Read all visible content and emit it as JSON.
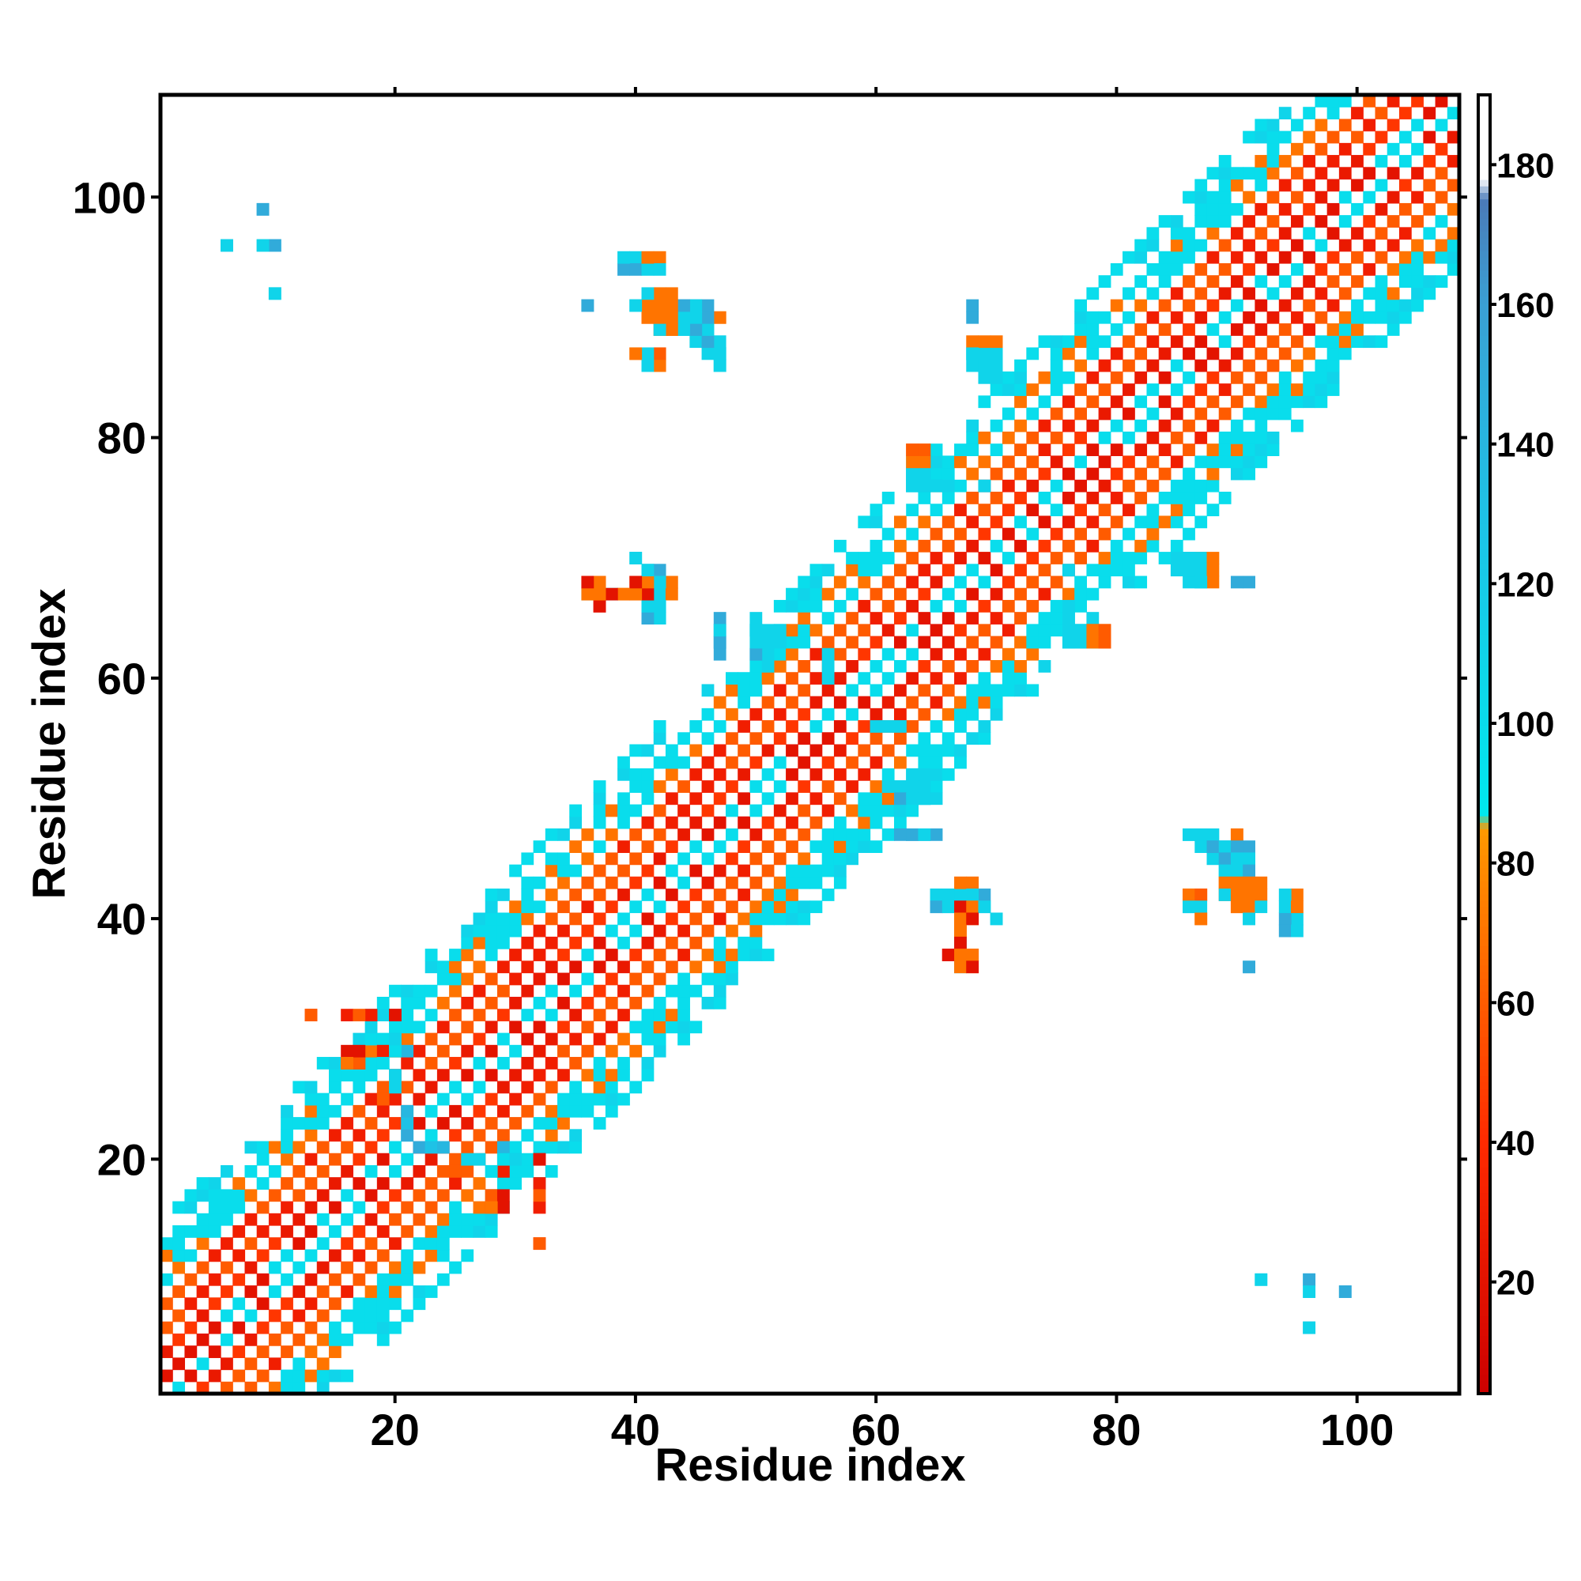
{
  "chart_data": {
    "type": "heatmap",
    "title": "",
    "xlabel": "Residue index",
    "ylabel": "Residue index",
    "xlim": [
      1,
      108
    ],
    "ylim": [
      1,
      108
    ],
    "x_ticks": [
      20,
      40,
      60,
      80,
      100
    ],
    "y_ticks": [
      20,
      40,
      60,
      80,
      100
    ],
    "grid": false,
    "colorbar": {
      "range": [
        4,
        190
      ],
      "ticks": [
        20,
        40,
        60,
        80,
        100,
        120,
        140,
        160,
        180
      ],
      "stops": [
        {
          "value": 4,
          "color": "#cc0000"
        },
        {
          "value": 40,
          "color": "#ff2a00"
        },
        {
          "value": 85,
          "color": "#ff9900"
        },
        {
          "value": 87,
          "color": "#00e8ee"
        },
        {
          "value": 130,
          "color": "#1ec2e6"
        },
        {
          "value": 160,
          "color": "#3aa0d4"
        },
        {
          "value": 175,
          "color": "#4a7ab8"
        },
        {
          "value": 178,
          "color": "#ffffff"
        },
        {
          "value": 190,
          "color": "#ffffff"
        }
      ]
    },
    "diagonal_bands": [
      {
        "from": 1,
        "to": 108,
        "max_offset": 14
      }
    ],
    "off_diagonal_cells": [
      [
        9,
        99,
        150
      ],
      [
        6,
        96,
        150
      ],
      [
        9,
        96,
        120
      ],
      [
        10,
        96,
        120
      ],
      [
        10,
        92,
        110
      ],
      [
        13,
        32,
        45
      ],
      [
        16,
        32,
        30
      ],
      [
        18,
        32,
        30
      ],
      [
        20,
        32,
        20
      ],
      [
        16,
        29,
        20
      ],
      [
        16,
        28,
        60
      ],
      [
        17,
        28,
        60
      ],
      [
        19,
        29,
        30
      ],
      [
        20,
        29,
        60
      ],
      [
        20,
        30,
        110
      ],
      [
        21,
        29,
        140
      ],
      [
        19,
        25,
        60
      ],
      [
        22,
        21,
        150
      ],
      [
        23,
        21,
        130
      ],
      [
        24,
        21,
        140
      ],
      [
        26,
        20,
        110
      ],
      [
        27,
        20,
        110
      ],
      [
        28,
        19,
        100
      ],
      [
        29,
        20,
        100
      ],
      [
        30,
        20,
        110
      ],
      [
        32,
        20,
        20
      ],
      [
        28,
        17,
        60
      ],
      [
        29,
        17,
        20
      ],
      [
        28,
        16,
        70
      ],
      [
        32,
        17,
        60
      ],
      [
        32,
        13,
        60
      ],
      [
        36,
        91,
        150
      ],
      [
        40,
        95,
        110
      ],
      [
        42,
        95,
        70
      ],
      [
        40,
        94,
        150
      ],
      [
        42,
        94,
        110
      ],
      [
        40,
        91,
        110
      ],
      [
        41,
        91,
        70
      ],
      [
        42,
        91,
        70
      ],
      [
        43,
        91,
        110
      ],
      [
        44,
        91,
        150
      ],
      [
        45,
        91,
        150
      ],
      [
        41,
        90,
        60
      ],
      [
        42,
        90,
        70
      ],
      [
        43,
        90,
        110
      ],
      [
        44,
        90,
        120
      ],
      [
        45,
        90,
        150
      ],
      [
        46,
        90,
        120
      ],
      [
        47,
        90,
        70
      ],
      [
        42,
        89,
        60
      ],
      [
        43,
        89,
        70
      ],
      [
        44,
        89,
        110
      ],
      [
        45,
        89,
        110
      ],
      [
        46,
        89,
        150
      ],
      [
        45,
        88,
        110
      ],
      [
        46,
        88,
        110
      ],
      [
        40,
        87,
        70
      ],
      [
        42,
        87,
        60
      ],
      [
        46,
        87,
        110
      ],
      [
        47,
        87,
        110
      ],
      [
        41,
        86,
        110
      ],
      [
        42,
        86,
        70
      ],
      [
        47,
        86,
        110
      ],
      [
        68,
        90,
        150
      ],
      [
        68,
        87,
        110
      ],
      [
        69,
        87,
        70
      ],
      [
        70,
        87,
        70
      ],
      [
        68,
        86,
        110
      ],
      [
        69,
        86,
        110
      ],
      [
        70,
        86,
        110
      ],
      [
        69,
        85,
        110
      ],
      [
        70,
        85,
        110
      ],
      [
        63,
        79,
        60
      ],
      [
        64,
        79,
        70
      ],
      [
        63,
        78,
        110
      ],
      [
        64,
        78,
        60
      ],
      [
        63,
        77,
        110
      ],
      [
        64,
        77,
        110
      ],
      [
        63,
        76,
        110
      ],
      [
        64,
        76,
        110
      ],
      [
        65,
        76,
        110
      ],
      [
        66,
        76,
        110
      ],
      [
        69,
        76,
        150
      ],
      [
        40,
        70,
        110
      ],
      [
        41,
        69,
        110
      ],
      [
        42,
        69,
        150
      ],
      [
        36,
        68,
        70
      ],
      [
        37,
        68,
        60
      ],
      [
        40,
        68,
        70
      ],
      [
        41,
        68,
        60
      ],
      [
        42,
        68,
        110
      ],
      [
        43,
        68,
        70
      ],
      [
        36,
        67,
        110
      ],
      [
        37,
        67,
        70
      ],
      [
        38,
        67,
        110
      ],
      [
        39,
        67,
        70
      ],
      [
        40,
        67,
        60
      ],
      [
        41,
        67,
        70
      ],
      [
        42,
        67,
        110
      ],
      [
        37,
        66,
        20
      ],
      [
        41,
        66,
        110
      ],
      [
        42,
        66,
        110
      ],
      [
        41,
        65,
        150
      ],
      [
        42,
        65,
        110
      ],
      [
        47,
        65,
        150
      ],
      [
        50,
        65,
        110
      ],
      [
        47,
        64,
        150
      ],
      [
        50,
        64,
        110
      ],
      [
        51,
        64,
        110
      ],
      [
        52,
        64,
        110
      ],
      [
        47,
        63,
        150
      ],
      [
        52,
        63,
        110
      ],
      [
        76,
        69,
        110
      ],
      [
        86,
        70,
        110
      ],
      [
        87,
        70,
        110
      ],
      [
        88,
        70,
        70
      ],
      [
        86,
        69,
        110
      ],
      [
        87,
        69,
        110
      ],
      [
        88,
        69,
        70
      ],
      [
        88,
        68,
        70
      ],
      [
        87,
        68,
        110
      ],
      [
        91,
        68,
        150
      ],
      [
        76,
        65,
        110
      ],
      [
        76,
        64,
        110
      ],
      [
        77,
        64,
        110
      ],
      [
        76,
        63,
        110
      ],
      [
        77,
        63,
        110
      ],
      [
        78,
        63,
        70
      ],
      [
        79,
        63,
        60
      ],
      [
        78,
        64,
        70
      ],
      [
        79,
        64,
        60
      ],
      [
        60,
        56,
        110
      ],
      [
        61,
        56,
        110
      ],
      [
        62,
        56,
        110
      ],
      [
        61,
        51,
        110
      ],
      [
        62,
        51,
        110
      ],
      [
        63,
        51,
        110
      ],
      [
        62,
        50,
        150
      ],
      [
        63,
        50,
        110
      ],
      [
        64,
        50,
        110
      ],
      [
        62,
        47,
        150
      ],
      [
        63,
        47,
        150
      ],
      [
        64,
        47,
        110
      ],
      [
        67,
        43,
        70
      ],
      [
        65,
        42,
        110
      ],
      [
        66,
        42,
        110
      ],
      [
        68,
        42,
        110
      ],
      [
        65,
        41,
        150
      ],
      [
        66,
        41,
        110
      ],
      [
        67,
        41,
        20
      ],
      [
        68,
        41,
        70
      ],
      [
        69,
        41,
        110
      ],
      [
        67,
        40,
        70
      ],
      [
        68,
        40,
        20
      ],
      [
        70,
        40,
        110
      ],
      [
        67,
        39,
        70
      ],
      [
        67,
        38,
        20
      ],
      [
        66,
        37,
        20
      ],
      [
        67,
        37,
        70
      ],
      [
        68,
        37,
        70
      ],
      [
        67,
        36,
        70
      ],
      [
        68,
        36,
        20
      ],
      [
        86,
        47,
        110
      ],
      [
        87,
        47,
        110
      ],
      [
        88,
        47,
        110
      ],
      [
        90,
        47,
        70
      ],
      [
        88,
        46,
        150
      ],
      [
        89,
        46,
        110
      ],
      [
        90,
        46,
        150
      ],
      [
        91,
        46,
        150
      ],
      [
        89,
        45,
        150
      ],
      [
        90,
        45,
        110
      ],
      [
        91,
        45,
        110
      ],
      [
        89,
        44,
        110
      ],
      [
        90,
        44,
        110
      ],
      [
        91,
        44,
        150
      ],
      [
        89,
        43,
        70
      ],
      [
        90,
        43,
        70
      ],
      [
        91,
        43,
        70
      ],
      [
        92,
        43,
        70
      ],
      [
        86,
        42,
        70
      ],
      [
        87,
        42,
        60
      ],
      [
        89,
        42,
        110
      ],
      [
        90,
        42,
        70
      ],
      [
        91,
        42,
        70
      ],
      [
        92,
        42,
        70
      ],
      [
        86,
        41,
        110
      ],
      [
        87,
        41,
        110
      ],
      [
        90,
        41,
        70
      ],
      [
        91,
        41,
        70
      ],
      [
        92,
        41,
        110
      ],
      [
        94,
        41,
        110
      ],
      [
        95,
        41,
        70
      ],
      [
        87,
        40,
        70
      ],
      [
        91,
        40,
        110
      ],
      [
        94,
        39,
        150
      ],
      [
        95,
        39,
        110
      ],
      [
        91,
        36,
        150
      ],
      [
        92,
        10,
        110
      ],
      [
        96,
        10,
        150
      ],
      [
        96,
        9,
        110
      ],
      [
        99,
        9,
        150
      ],
      [
        96,
        6,
        110
      ]
    ]
  }
}
